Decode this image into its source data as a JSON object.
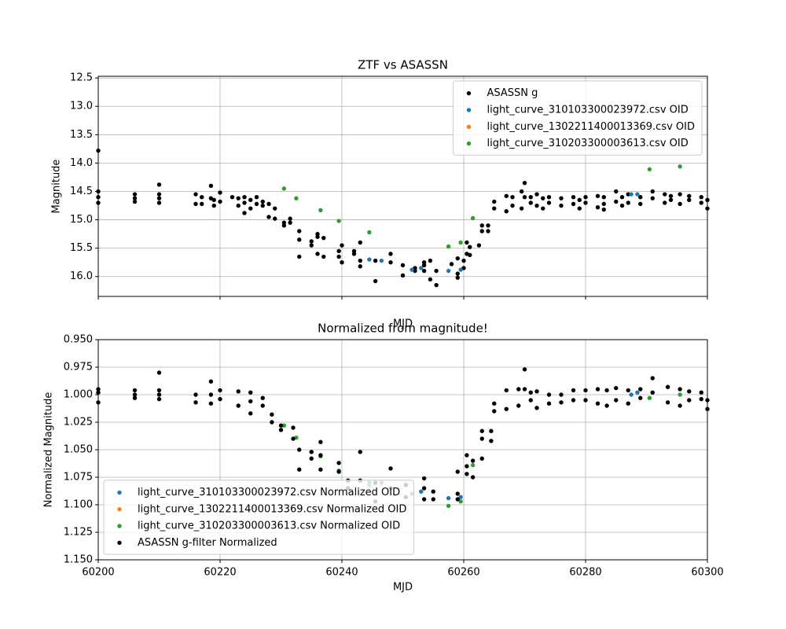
{
  "chart_data": [
    {
      "type": "scatter",
      "title": "ZTF vs ASASSN",
      "x_label": "MJD",
      "y_label": "Magnitude",
      "xlim": [
        60200,
        60300
      ],
      "xticks": [
        60200,
        60220,
        60240,
        60260,
        60280,
        60300
      ],
      "show_xtick_labels": false,
      "ylim": [
        16.35,
        12.47
      ],
      "yticks": [
        12.5,
        {
          "value": 13,
          "label": "13.0"
        },
        13.5,
        {
          "value": 14,
          "label": "14.0"
        },
        14.5,
        {
          "value": 15,
          "label": "15.0"
        },
        15.5,
        {
          "value": 16,
          "label": "16.0"
        }
      ],
      "grid": true,
      "legend": "upper-right",
      "series": [
        {
          "name": "ASASSN g",
          "color": "#000000",
          "x": [
            60200,
            60200,
            60200,
            60200,
            60206,
            60206,
            60206,
            60210,
            60210,
            60210,
            60210,
            60216,
            60216,
            60217,
            60217,
            60218.5,
            60218.5,
            60219,
            60219,
            60220,
            60220,
            60222,
            60223,
            60223,
            60224,
            60224,
            60224,
            60225,
            60225,
            60226,
            60226,
            60227,
            60227,
            60228,
            60228,
            60229,
            60229,
            60230.5,
            60230.5,
            60231.5,
            60231.5,
            60233,
            60233,
            60233,
            60235,
            60235,
            60236,
            60236,
            60236,
            60237,
            60237,
            60239.5,
            60239.5,
            60240,
            60240,
            60242,
            60242,
            60243,
            60243,
            60243,
            60245.5,
            60245.5,
            60248,
            60248,
            60250,
            60250,
            60252,
            60252,
            60253.5,
            60253.5,
            60253.5,
            60254.5,
            60254.5,
            60255.5,
            60255.5,
            60258,
            60259,
            60259,
            60259,
            60260,
            60260,
            60260.5,
            60260.5,
            60261,
            60261,
            60262.5,
            60263,
            60263,
            60264,
            60264,
            60265,
            60265,
            60267,
            60267,
            60268,
            60268,
            60269.5,
            60269.5,
            60270,
            60270,
            60271,
            60271,
            60272,
            60272,
            60273,
            60273,
            60274,
            60274,
            60276,
            60276,
            60278,
            60278,
            60279,
            60279,
            60280,
            60280,
            60282,
            60282,
            60283,
            60283,
            60283,
            60285,
            60285,
            60286,
            60286,
            60287,
            60287,
            60289,
            60289,
            60291,
            60291,
            60293,
            60293,
            60294,
            60294,
            60295.5,
            60295.5,
            60297,
            60297,
            60299,
            60299,
            60300,
            60300
          ],
          "values": [
            14.5,
            14.6,
            14.7,
            13.78,
            14.55,
            14.62,
            14.68,
            14.38,
            14.55,
            14.62,
            14.7,
            14.55,
            14.72,
            14.6,
            14.72,
            14.4,
            14.62,
            14.65,
            14.75,
            14.52,
            14.68,
            14.6,
            14.62,
            14.75,
            14.6,
            14.7,
            14.88,
            14.65,
            14.8,
            14.6,
            14.72,
            14.68,
            14.75,
            14.72,
            14.95,
            14.8,
            14.98,
            15.05,
            15.1,
            14.98,
            15.05,
            15.2,
            15.35,
            15.65,
            15.38,
            15.45,
            15.25,
            15.3,
            15.6,
            15.32,
            15.65,
            15.55,
            15.65,
            15.45,
            15.75,
            15.55,
            15.6,
            15.4,
            15.72,
            15.82,
            15.72,
            16.08,
            15.6,
            15.75,
            15.8,
            15.98,
            15.85,
            15.9,
            15.75,
            15.8,
            15.9,
            15.72,
            16.05,
            15.9,
            16.15,
            15.78,
            15.68,
            15.95,
            16.02,
            15.72,
            15.85,
            15.4,
            15.6,
            15.48,
            15.62,
            15.45,
            15.1,
            15.2,
            15.1,
            15.2,
            14.68,
            14.8,
            14.58,
            14.85,
            14.6,
            14.75,
            14.5,
            14.8,
            14.35,
            14.6,
            14.6,
            14.7,
            14.55,
            14.75,
            14.62,
            14.8,
            14.6,
            14.7,
            14.62,
            14.75,
            14.6,
            14.72,
            14.65,
            14.8,
            14.6,
            14.7,
            14.58,
            14.78,
            14.6,
            14.72,
            14.82,
            14.5,
            14.68,
            14.6,
            14.75,
            14.55,
            14.7,
            14.6,
            14.72,
            14.5,
            14.62,
            14.55,
            14.7,
            14.58,
            14.65,
            14.55,
            14.72,
            14.58,
            14.65,
            14.6,
            14.7,
            14.65,
            14.8
          ]
        },
        {
          "name": "light_curve_310103300023972.csv OID",
          "color": "#1f77b4",
          "x": [
            60244.5,
            60246.5,
            60251.5,
            60253,
            60257.5,
            60259.5,
            60287.5,
            60288.5
          ],
          "values": [
            15.7,
            15.72,
            15.88,
            15.85,
            15.9,
            15.88,
            14.55,
            14.55
          ]
        },
        {
          "name": "light_curve_1302211400013369.csv OID",
          "color": "#ff7f0e",
          "x": [],
          "values": []
        },
        {
          "name": "light_curve_310203300003613.csv OID",
          "color": "#2ca02c",
          "x": [
            60230.5,
            60232.5,
            60236.5,
            60239.5,
            60244.5,
            60257.5,
            60259.5,
            60261.5,
            60290.5,
            60295.5
          ],
          "values": [
            14.45,
            14.62,
            14.83,
            15.02,
            15.22,
            15.47,
            15.4,
            14.97,
            14.11,
            14.06
          ]
        }
      ]
    },
    {
      "type": "scatter",
      "title": "Normalized from magnitude!",
      "x_label": "MJD",
      "y_label": "Normalized Magnitude",
      "xlim": [
        60200,
        60300
      ],
      "xticks": [
        60200,
        60220,
        60240,
        60260,
        60280,
        60300
      ],
      "show_xtick_labels": true,
      "ylim": [
        1.15,
        0.95
      ],
      "yticks": [
        {
          "value": 0.95,
          "label": "0.950"
        },
        0.975,
        {
          "value": 1,
          "label": "1.000"
        },
        1.025,
        {
          "value": 1.05,
          "label": "1.050"
        },
        1.075,
        {
          "value": 1.1,
          "label": "1.100"
        },
        1.125,
        {
          "value": 1.15,
          "label": "1.150"
        }
      ],
      "grid": true,
      "legend": "lower-left",
      "series": [
        {
          "name": "light_curve_310103300023972.csv Normalized OID",
          "color": "#1f77b4",
          "x": [
            60244.5,
            60246.5,
            60251.5,
            60253,
            60257.5,
            60259.5,
            60287.5,
            60288.5
          ],
          "values": [
            1.08,
            1.08,
            1.09,
            1.088,
            1.094,
            1.093,
            1.0,
            0.998
          ]
        },
        {
          "name": "light_curve_1302211400013369.csv Normalized OID",
          "color": "#ff7f0e",
          "x": [],
          "values": []
        },
        {
          "name": "light_curve_310203300003613.csv Normalized OID",
          "color": "#2ca02c",
          "x": [
            60230.5,
            60232.5,
            60236.5,
            60239.5,
            60244.5,
            60257.5,
            60259.5,
            60261.5,
            60290.5,
            60295.5
          ],
          "values": [
            1.028,
            1.039,
            1.056,
            1.069,
            1.082,
            1.101,
            1.097,
            1.064,
            1.003,
            1.0
          ]
        },
        {
          "name": "ASASSN g-filter Normalized",
          "color": "#000000",
          "x": [
            60200,
            60200,
            60200,
            60206,
            60206,
            60206,
            60210,
            60210,
            60210,
            60210,
            60216,
            60216,
            60218.5,
            60218.5,
            60218.5,
            60220,
            60220,
            60223,
            60223,
            60225,
            60225,
            60225,
            60227,
            60227,
            60228.5,
            60228.5,
            60230,
            60230,
            60232,
            60232,
            60233,
            60233,
            60235,
            60235,
            60236.5,
            60236.5,
            60236.5,
            60239.5,
            60239.5,
            60241,
            60241,
            60243,
            60243,
            60245.5,
            60245.5,
            60248,
            60248,
            60250.5,
            60250.5,
            60253.5,
            60253.5,
            60253.5,
            60255,
            60255,
            60259,
            60259,
            60259,
            60260.5,
            60260.5,
            60260.5,
            60261.5,
            60261.5,
            60263,
            60263,
            60263,
            60264.5,
            60264.5,
            60265,
            60265,
            60267,
            60267,
            60269,
            60269,
            60270,
            60270,
            60271,
            60271,
            60272,
            60272,
            60274,
            60274,
            60276,
            60276,
            60278,
            60278,
            60280,
            60280,
            60282,
            60282,
            60283.5,
            60283.5,
            60285,
            60285,
            60287,
            60287,
            60289,
            60289,
            60291,
            60291,
            60293.5,
            60293.5,
            60295.5,
            60295.5,
            60297,
            60297,
            60299,
            60299,
            60300,
            60300
          ],
          "values": [
            0.995,
            0.998,
            1.007,
            0.996,
            1.0,
            1.003,
            0.98,
            0.996,
            1.0,
            1.004,
            1.0,
            1.007,
            0.988,
            1.0,
            1.008,
            0.996,
            1.004,
            0.997,
            1.01,
            0.998,
            1.006,
            1.017,
            1.003,
            1.01,
            1.018,
            1.025,
            1.028,
            1.032,
            1.03,
            1.04,
            1.05,
            1.068,
            1.052,
            1.058,
            1.043,
            1.055,
            1.068,
            1.062,
            1.07,
            1.078,
            1.085,
            1.052,
            1.078,
            1.08,
            1.097,
            1.067,
            1.085,
            1.082,
            1.093,
            1.076,
            1.085,
            1.095,
            1.088,
            1.095,
            1.07,
            1.09,
            1.095,
            1.055,
            1.065,
            1.072,
            1.06,
            1.075,
            1.033,
            1.04,
            1.058,
            1.033,
            1.042,
            1.008,
            1.015,
            0.996,
            1.013,
            0.995,
            1.01,
            0.977,
            0.995,
            0.998,
            1.005,
            0.997,
            1.012,
            1.0,
            1.008,
            1.0,
            1.007,
            0.996,
            1.005,
            0.996,
            1.005,
            0.995,
            1.008,
            0.996,
            1.01,
            0.994,
            1.005,
            0.996,
            1.008,
            0.995,
            1.003,
            0.985,
            0.998,
            0.993,
            1.007,
            0.995,
            1.01,
            0.997,
            1.005,
            0.998,
            1.004,
            1.005,
            1.013
          ]
        }
      ]
    }
  ]
}
